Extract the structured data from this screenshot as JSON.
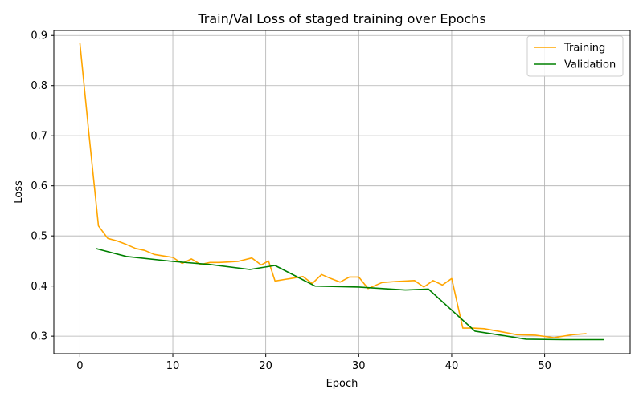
{
  "chart_data": {
    "type": "line",
    "title": "Train/Val Loss of staged training over Epochs",
    "xlabel": "Epoch",
    "ylabel": "Loss",
    "xlim": [
      -2.8,
      59.2
    ],
    "ylim": [
      0.265,
      0.91
    ],
    "xticks": [
      0,
      10,
      20,
      30,
      40,
      50
    ],
    "yticks": [
      0.3,
      0.4,
      0.5,
      0.6,
      0.7,
      0.8,
      0.9
    ],
    "grid": true,
    "legend_position": "top-right",
    "series": [
      {
        "name": "Training",
        "color": "#ffa500",
        "x": [
          0,
          1,
          2,
          3,
          4,
          5,
          6,
          7,
          8,
          9,
          10,
          11,
          12,
          13,
          14,
          15,
          16,
          17,
          18.5,
          19.5,
          20.3,
          21,
          22,
          23,
          24,
          25,
          26,
          27,
          28,
          29,
          30,
          31,
          32.5,
          34,
          36,
          37,
          38,
          39,
          40,
          41.2,
          42.3,
          43.5,
          45,
          47,
          49,
          51,
          53,
          54.5
        ],
        "y": [
          0.885,
          0.7,
          0.52,
          0.495,
          0.49,
          0.483,
          0.475,
          0.471,
          0.463,
          0.46,
          0.457,
          0.445,
          0.454,
          0.443,
          0.447,
          0.447,
          0.448,
          0.449,
          0.456,
          0.442,
          0.45,
          0.41,
          0.413,
          0.416,
          0.419,
          0.405,
          0.423,
          0.415,
          0.408,
          0.418,
          0.418,
          0.395,
          0.407,
          0.409,
          0.411,
          0.398,
          0.411,
          0.402,
          0.415,
          0.316,
          0.316,
          0.315,
          0.31,
          0.303,
          0.302,
          0.297,
          0.303,
          0.305
        ]
      },
      {
        "name": "Validation",
        "color": "#008000",
        "x": [
          1.7,
          5,
          10,
          14,
          18.3,
          21,
          25.3,
          30,
          35,
          37.5,
          42.5,
          48,
          52,
          56.4
        ],
        "y": [
          0.475,
          0.459,
          0.449,
          0.443,
          0.433,
          0.441,
          0.4,
          0.398,
          0.392,
          0.394,
          0.31,
          0.294,
          0.293,
          0.293
        ]
      }
    ]
  }
}
